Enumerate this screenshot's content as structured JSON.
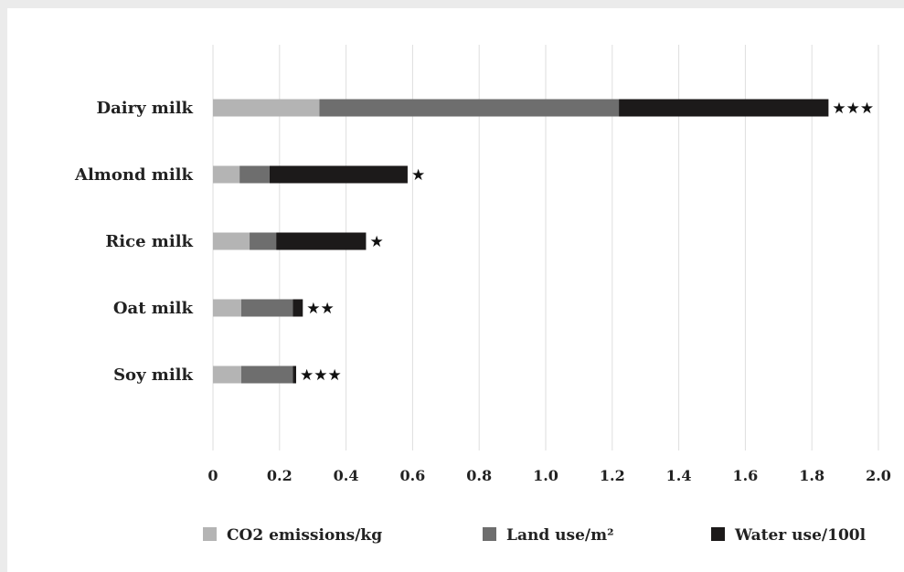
{
  "chart_data": {
    "type": "bar",
    "orientation": "horizontal",
    "stacked": true,
    "categories": [
      "Dairy milk",
      "Almond milk",
      "Rice milk",
      "Oat milk",
      "Soy milk"
    ],
    "series": [
      {
        "name": "CO2 emissions/kg",
        "color": "#b4b4b4",
        "values": [
          0.32,
          0.08,
          0.11,
          0.085,
          0.085
        ]
      },
      {
        "name": "Land use/m²",
        "color": "#6e6e6e",
        "values": [
          0.9,
          0.09,
          0.08,
          0.155,
          0.155
        ]
      },
      {
        "name": "Water use/100l",
        "color": "#1c1a1a",
        "values": [
          0.63,
          0.415,
          0.27,
          0.03,
          0.01
        ]
      }
    ],
    "annotations": [
      "★★★",
      "★",
      "★",
      "★★",
      "★★★"
    ],
    "xlim": [
      0,
      2.0
    ],
    "xticks": [
      "0",
      "0.2",
      "0.4",
      "0.6",
      "0.8",
      "1.0",
      "1.2",
      "1.4",
      "1.6",
      "1.8",
      "2.0"
    ],
    "grid": true,
    "legend_position": "bottom"
  }
}
